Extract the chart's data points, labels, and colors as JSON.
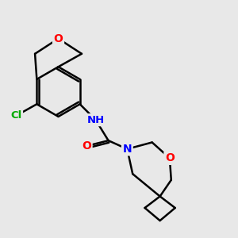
{
  "bg_color": "#e8e8e8",
  "atom_colors": {
    "C": "#000000",
    "N": "#0000ff",
    "O": "#ff0000",
    "Cl": "#00aa00",
    "H": "#888888"
  },
  "bond_color": "#000000",
  "bond_width": 1.8
}
